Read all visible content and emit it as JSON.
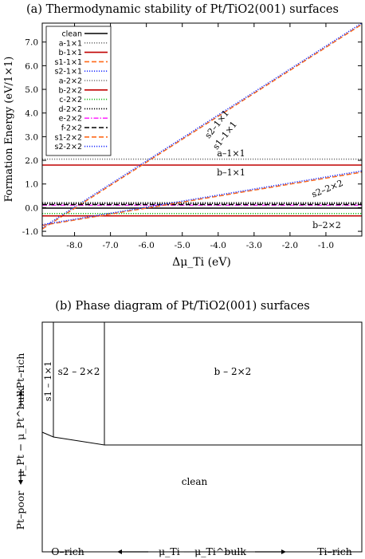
{
  "chart_data": [
    {
      "type": "line",
      "title": "(a)  Thermodynamic stability of Pt/TiO2(001) surfaces",
      "xlabel": "Δμ_Ti (eV)",
      "ylabel": "Formation Energy (eV/1×1)",
      "xlim": [
        -8.9,
        0.0
      ],
      "ylim": [
        -1.2,
        7.8
      ],
      "x_ticks": [
        -8.0,
        -7.0,
        -6.0,
        -5.0,
        -4.0,
        -3.0,
        -2.0,
        -1.0
      ],
      "y_ticks": [
        -1.0,
        0.0,
        1.0,
        2.0,
        3.0,
        4.0,
        5.0,
        6.0,
        7.0
      ],
      "legend_position": "top-left",
      "series": [
        {
          "name": "clean",
          "color": "#000000",
          "dash": "solid",
          "x": [
            -8.9,
            0.0
          ],
          "y": [
            -0.02,
            -0.02
          ]
        },
        {
          "name": "a-1×1",
          "color": "#777777",
          "dash": "dot",
          "x": [
            -8.9,
            0.0
          ],
          "y": [
            2.05,
            2.05
          ]
        },
        {
          "name": "b-1×1",
          "color": "#c00000",
          "dash": "solid",
          "x": [
            -8.9,
            0.0
          ],
          "y": [
            1.8,
            1.8
          ]
        },
        {
          "name": "s1-1×1",
          "color": "#ff6a1a",
          "dash": "dash",
          "x": [
            -8.9,
            0.0
          ],
          "y": [
            -0.9,
            7.75
          ]
        },
        {
          "name": "s2-1×1",
          "color": "#2030ff",
          "dash": "dot",
          "x": [
            -8.9,
            0.0
          ],
          "y": [
            -0.85,
            7.8
          ]
        },
        {
          "name": "a-2×2",
          "color": "#777777",
          "dash": "dot",
          "x": [
            -8.9,
            0.0
          ],
          "y": [
            0.22,
            0.22
          ]
        },
        {
          "name": "b-2×2",
          "color": "#c00000",
          "dash": "solid",
          "x": [
            -8.9,
            0.0
          ],
          "y": [
            -0.35,
            -0.35
          ]
        },
        {
          "name": "c-2×2",
          "color": "#22bb22",
          "dash": "dot",
          "x": [
            -8.9,
            0.0
          ],
          "y": [
            -0.25,
            -0.25
          ]
        },
        {
          "name": "d-2×2",
          "color": "#000000",
          "dash": "dot",
          "x": [
            -8.9,
            0.0
          ],
          "y": [
            0.18,
            0.18
          ]
        },
        {
          "name": "e-2×2",
          "color": "#ff33ff",
          "dash": "dashdot",
          "x": [
            -8.9,
            0.0
          ],
          "y": [
            0.1,
            0.1
          ]
        },
        {
          "name": "f-2×2",
          "color": "#000000",
          "dash": "dash",
          "x": [
            -8.9,
            0.0
          ],
          "y": [
            0.13,
            0.13
          ]
        },
        {
          "name": "s1-2×2",
          "color": "#ff6a1a",
          "dash": "dash",
          "x": [
            -8.9,
            0.0
          ],
          "y": [
            -0.75,
            1.5
          ]
        },
        {
          "name": "s2-2×2",
          "color": "#2030ff",
          "dash": "dot",
          "x": [
            -8.9,
            0.0
          ],
          "y": [
            -0.72,
            1.55
          ]
        }
      ],
      "annotations": [
        {
          "text": "s2–1×1"
        },
        {
          "text": "s1–1×1"
        },
        {
          "text": "a–1×1"
        },
        {
          "text": "b–1×1"
        },
        {
          "text": "s2–2×2"
        },
        {
          "text": "b–2×2"
        }
      ]
    },
    {
      "type": "phase_diagram",
      "title": "(b)  Phase diagram of Pt/TiO2(001) surfaces",
      "regions": [
        "s1 – 1×1",
        "s2 – 2×2",
        "b – 2×2",
        "clean"
      ],
      "y_axis_label": "μ_Pt − μ_Pt^bulk",
      "y_axis_top": "Pt–rich",
      "y_axis_bottom": "Pt–poor",
      "x_axis_label": "μ_Ti − μ_Ti^bulk",
      "x_axis_left": "O–rich",
      "x_axis_right": "Ti–rich"
    }
  ]
}
